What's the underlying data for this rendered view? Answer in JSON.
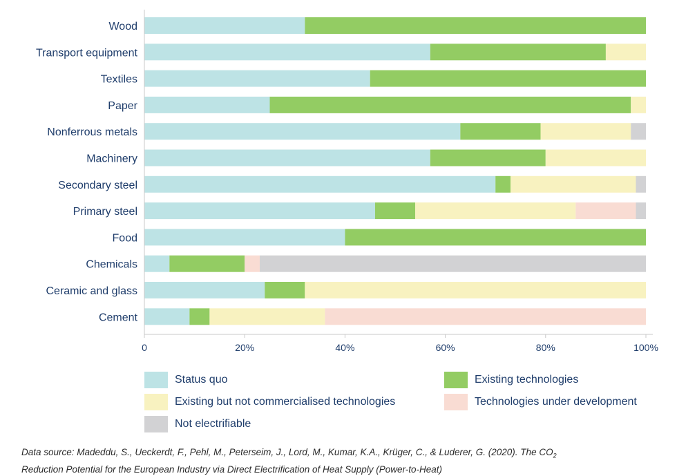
{
  "chart_data": {
    "type": "bar",
    "orientation": "horizontal",
    "stacked": true,
    "categories": [
      "Wood",
      "Transport equipment",
      "Textiles",
      "Paper",
      "Nonferrous metals",
      "Machinery",
      "Secondary steel",
      "Primary steel",
      "Food",
      "Chemicals",
      "Ceramic and glass",
      "Cement"
    ],
    "series": [
      {
        "name": "Status quo",
        "color": "#bde3e5",
        "values": [
          32,
          57,
          45,
          25,
          63,
          57,
          70,
          46,
          40,
          5,
          24,
          9
        ]
      },
      {
        "name": "Existing technologies",
        "color": "#93cc63",
        "values": [
          68,
          35,
          55,
          72,
          16,
          23,
          3,
          8,
          60,
          15,
          8,
          4
        ]
      },
      {
        "name": "Existing but not commercialised technologies",
        "color": "#f8f2c0",
        "values": [
          0,
          8,
          0,
          3,
          18,
          20,
          25,
          32,
          0,
          0,
          68,
          23
        ]
      },
      {
        "name": "Technologies under development",
        "color": "#f9dcd3",
        "values": [
          0,
          0,
          0,
          0,
          0,
          0,
          0,
          12,
          0,
          3,
          0,
          64
        ]
      },
      {
        "name": "Not electrifiable",
        "color": "#d2d2d4",
        "values": [
          0,
          0,
          0,
          0,
          3,
          0,
          2,
          2,
          0,
          77,
          0,
          0
        ]
      }
    ],
    "xlim": [
      0,
      100
    ],
    "x_ticks": [
      "0",
      "20%",
      "40%",
      "60%",
      "80%",
      "100%"
    ],
    "grid": false,
    "legend_position": "bottom"
  },
  "source": {
    "line1_pre": "Data source: Madeddu, S., Ueckerdt, F., Pehl, M., Peterseim, J., Lord, M., Kumar, K.A., Krüger, C., & Luderer, G. (2020). The CO",
    "line1_sub": "2",
    "line2": "Reduction Potential for the European Industry via Direct Electrification of Heat Supply (Power-to-Heat)"
  }
}
